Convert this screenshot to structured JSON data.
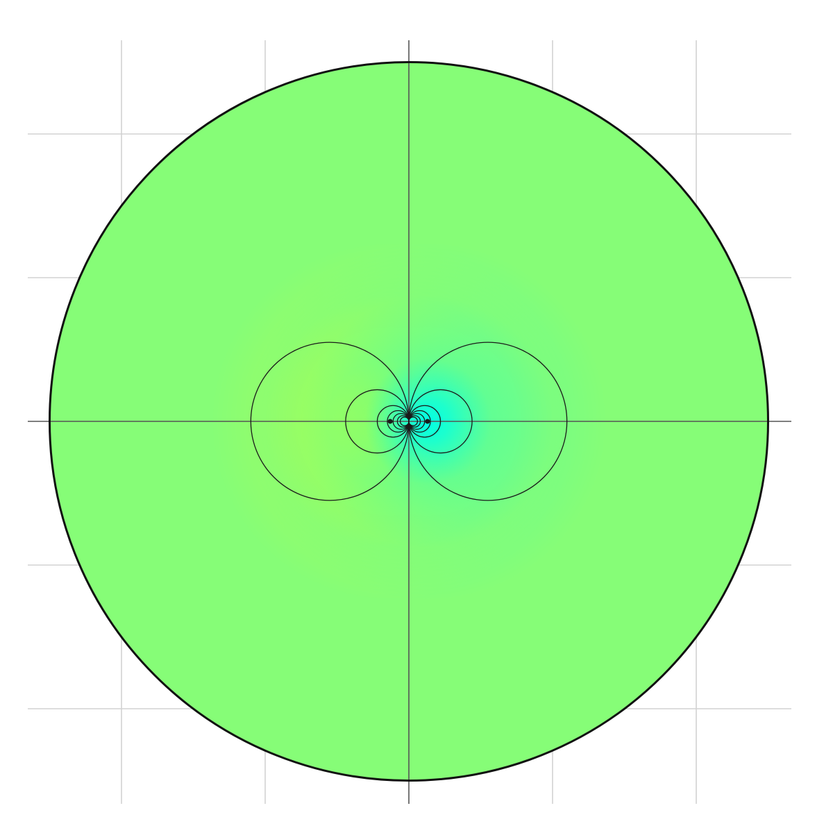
{
  "chart_data": {
    "type": "contour",
    "title": "",
    "xlabel": "",
    "ylabel": "",
    "xlim": [
      -2.65,
      2.65
    ],
    "ylim": [
      -2.65,
      2.65
    ],
    "x_gridlines": [
      -2,
      -1,
      0,
      1,
      2
    ],
    "y_gridlines": [
      -2,
      -1,
      0,
      1,
      2
    ],
    "grid": true,
    "axes_through_origin": true,
    "boundary_circle": {
      "center": [
        0,
        0
      ],
      "radius": 2.5
    },
    "sources": [
      {
        "label": "",
        "x": -0.13,
        "y": 0,
        "sign": "positive"
      },
      {
        "label": "",
        "x": 0.13,
        "y": 0,
        "sign": "negative"
      }
    ],
    "contour_circles": [
      {
        "side": "left",
        "center_x": -0.55,
        "radius": 0.55
      },
      {
        "side": "left",
        "center_x": -0.22,
        "radius": 0.22
      },
      {
        "side": "left",
        "center_x": -0.11,
        "radius": 0.11
      },
      {
        "side": "left",
        "center_x": -0.075,
        "radius": 0.075
      },
      {
        "side": "left",
        "center_x": -0.055,
        "radius": 0.055
      },
      {
        "side": "left",
        "center_x": -0.04,
        "radius": 0.04
      },
      {
        "side": "left",
        "center_x": -0.03,
        "radius": 0.03
      },
      {
        "side": "right",
        "center_x": 0.55,
        "radius": 0.55
      },
      {
        "side": "right",
        "center_x": 0.22,
        "radius": 0.22
      },
      {
        "side": "right",
        "center_x": 0.11,
        "radius": 0.11
      },
      {
        "side": "right",
        "center_x": 0.075,
        "radius": 0.075
      },
      {
        "side": "right",
        "center_x": 0.055,
        "radius": 0.055
      },
      {
        "side": "right",
        "center_x": 0.04,
        "radius": 0.04
      },
      {
        "side": "right",
        "center_x": 0.03,
        "radius": 0.03
      }
    ],
    "colormap": {
      "neutral": "#86fd77",
      "positive": "#ffff00",
      "negative": "#00ffe6"
    },
    "colors": {
      "grid": "#d2d2d2",
      "axes": "#555555",
      "contour": "#1a1a1a",
      "boundary": "#111111"
    }
  }
}
